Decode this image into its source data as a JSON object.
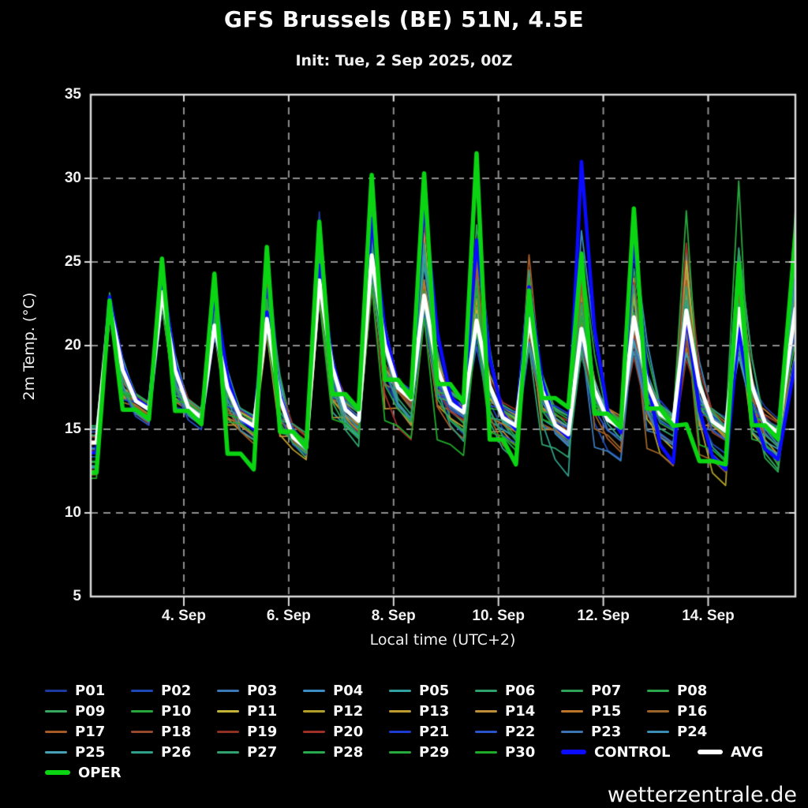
{
  "page": {
    "background": "#000000",
    "watermark": "wetterzentrale.de"
  },
  "header": {
    "title": "GFS Brussels (BE) 51N, 4.5E",
    "subtitle": "Init: Tue, 2 Sep 2025, 00Z"
  },
  "chart_data": {
    "type": "line",
    "title": "GFS Brussels (BE) 51N, 4.5E",
    "subtitle": "Init: Tue, 2 Sep 2025, 00Z",
    "xlabel": "Local time (UTC+2)",
    "ylabel": "2m Temp. (°C)",
    "ylim": [
      5,
      35
    ],
    "yticks": [
      35,
      30,
      25,
      20,
      15,
      10,
      5
    ],
    "xticks": [
      {
        "day": 4,
        "label": "4. Sep"
      },
      {
        "day": 6,
        "label": "6. Sep"
      },
      {
        "day": 8,
        "label": "8. Sep"
      },
      {
        "day": 10,
        "label": "10. Sep"
      },
      {
        "day": 12,
        "label": "12. Sep"
      },
      {
        "day": 14,
        "label": "14. Sep"
      }
    ],
    "x_domain_days": [
      2.224,
      15.663
    ],
    "days": [
      2,
      3,
      4,
      5,
      6,
      7,
      8,
      9,
      10,
      11,
      12,
      13,
      14,
      15
    ],
    "grid": {
      "color": "#8f8f8f",
      "frame_color": "#dcdcdc",
      "text_color": "#f0f0f0"
    },
    "series": {
      "oper": {
        "label": "OPER",
        "color": "#0bd413",
        "width": 5.5,
        "start": 12.4,
        "evening_drop_fraction": 0.92,
        "daily_max": [
          22.7,
          25.2,
          24.3,
          25.9,
          27.4,
          30.2,
          30.3,
          31.5,
          23.3,
          25.5,
          28.2,
          15.3,
          24.9,
          26.6
        ],
        "nightly_min": [
          15.6,
          15.3,
          12.6,
          13.9,
          16.2,
          16.9,
          16.6,
          12.9,
          16.3,
          15.1,
          15.2,
          12.9,
          14.4
        ]
      },
      "control": {
        "label": "CONTROL",
        "color": "#0b0bff",
        "width": 4.5,
        "start": 13.6,
        "evening_drop_fraction": 0.62,
        "daily_max": [
          22.9,
          24.2,
          23.2,
          22.0,
          24.8,
          27.6,
          28.6,
          26.3,
          23.5,
          31.0,
          26.5,
          21.9,
          21.0,
          19.0
        ],
        "nightly_min": [
          16.3,
          15.6,
          15.0,
          14.0,
          15.5,
          16.8,
          16.0,
          15.0,
          14.5,
          14.8,
          13.0,
          12.6,
          13.2
        ]
      },
      "avg": {
        "label": "AVG",
        "color": "#ffffff",
        "width": 5,
        "start": 14.2,
        "evening_drop_fraction": 0.62,
        "daily_max": [
          22.4,
          23.2,
          21.2,
          21.6,
          23.9,
          25.4,
          23.0,
          21.5,
          21.6,
          21.0,
          21.7,
          22.1,
          22.2,
          22.2
        ],
        "nightly_min": [
          16.2,
          15.7,
          15.2,
          13.9,
          15.5,
          16.8,
          16.0,
          15.2,
          14.7,
          15.1,
          15.4,
          14.9,
          14.8
        ]
      }
    },
    "ensemble": {
      "seed": 20250902,
      "line_width": 1.8,
      "start_range": [
        12.0,
        15.5
      ],
      "daily_max_range": {
        "min": [
          21.2,
          22.0,
          20.5,
          20.0,
          22.0,
          22.5,
          21.0,
          19.5,
          19.0,
          18.5,
          18.0,
          18.0,
          18.0,
          19.0
        ],
        "max": [
          23.4,
          25.3,
          24.5,
          27.6,
          29.3,
          30.3,
          30.3,
          31.5,
          28.0,
          31.2,
          30.9,
          30.5,
          32.1,
          32.2
        ]
      },
      "nightly_min_range": {
        "min": [
          14.6,
          14.5,
          13.0,
          12.2,
          13.0,
          13.0,
          12.0,
          11.5,
          11.3,
          10.2,
          10.3,
          10.5,
          10.2
        ],
        "max": [
          16.8,
          16.5,
          16.0,
          15.5,
          17.0,
          17.5,
          17.0,
          16.5,
          16.5,
          16.5,
          16.0,
          16.0,
          16.0
        ]
      },
      "members": [
        {
          "name": "P01",
          "color": "#1c3aa0"
        },
        {
          "name": "P02",
          "color": "#1d49b6"
        },
        {
          "name": "P03",
          "color": "#3a79b8"
        },
        {
          "name": "P04",
          "color": "#3a8ec4"
        },
        {
          "name": "P05",
          "color": "#31a1a1"
        },
        {
          "name": "P06",
          "color": "#2fa16c"
        },
        {
          "name": "P07",
          "color": "#2fa158"
        },
        {
          "name": "P08",
          "color": "#2aa74c"
        },
        {
          "name": "P09",
          "color": "#36a660"
        },
        {
          "name": "P10",
          "color": "#26a63b"
        },
        {
          "name": "P11",
          "color": "#c3b337"
        },
        {
          "name": "P12",
          "color": "#b19e29"
        },
        {
          "name": "P13",
          "color": "#be9b2f"
        },
        {
          "name": "P14",
          "color": "#be8d39"
        },
        {
          "name": "P15",
          "color": "#ba7528"
        },
        {
          "name": "P16",
          "color": "#9b6428"
        },
        {
          "name": "P17",
          "color": "#a65b27"
        },
        {
          "name": "P18",
          "color": "#97492b"
        },
        {
          "name": "P19",
          "color": "#8f3020"
        },
        {
          "name": "P20",
          "color": "#9f3027"
        },
        {
          "name": "P21",
          "color": "#1c3cd2"
        },
        {
          "name": "P22",
          "color": "#2954ca"
        },
        {
          "name": "P23",
          "color": "#3c74b3"
        },
        {
          "name": "P24",
          "color": "#3c8db3"
        },
        {
          "name": "P25",
          "color": "#46a1b6"
        },
        {
          "name": "P26",
          "color": "#309f89"
        },
        {
          "name": "P27",
          "color": "#30a16f"
        },
        {
          "name": "P28",
          "color": "#28a950"
        },
        {
          "name": "P29",
          "color": "#28a93d"
        },
        {
          "name": "P30",
          "color": "#1fa928"
        }
      ]
    }
  }
}
